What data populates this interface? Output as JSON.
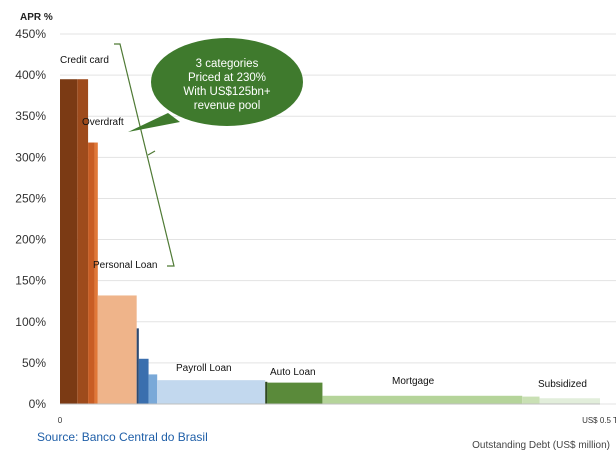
{
  "chart_data": {
    "type": "bar",
    "subtype": "variable-width bar (marimekko)",
    "ylabel": "APR %",
    "xlabel": "Outstanding Debt (US$ million)",
    "ylim": [
      0,
      450
    ],
    "xlim": [
      0,
      0.5
    ],
    "y_ticks": [
      "0%",
      "50%",
      "100%",
      "150%",
      "200%",
      "250%",
      "300%",
      "350%",
      "400%",
      "450%"
    ],
    "x_ticks": [
      "0",
      "US$ 0.5 T"
    ],
    "grid": true,
    "legend": "none",
    "segments": [
      {
        "label": "Credit card",
        "x_start": 0.0,
        "x_end": 0.016,
        "apr": 395,
        "color": "#7b3a14"
      },
      {
        "label": "",
        "x_start": 0.016,
        "x_end": 0.026,
        "apr": 395,
        "color": "#9e4b1c"
      },
      {
        "label": "Overdraft",
        "x_start": 0.026,
        "x_end": 0.032,
        "apr": 318,
        "color": "#c85d24"
      },
      {
        "label": "",
        "x_start": 0.032,
        "x_end": 0.035,
        "apr": 318,
        "color": "#e07838"
      },
      {
        "label": "Personal Loan",
        "x_start": 0.035,
        "x_end": 0.071,
        "apr": 132,
        "color": "#efb48a"
      },
      {
        "label": "",
        "x_start": 0.071,
        "x_end": 0.073,
        "apr": 92,
        "color": "#2c4a72"
      },
      {
        "label": "",
        "x_start": 0.073,
        "x_end": 0.082,
        "apr": 55,
        "color": "#3a6fae"
      },
      {
        "label": "",
        "x_start": 0.082,
        "x_end": 0.09,
        "apr": 36,
        "color": "#7aa9d8"
      },
      {
        "label": "Payroll Loan",
        "x_start": 0.09,
        "x_end": 0.19,
        "apr": 29,
        "color": "#c2d8ee"
      },
      {
        "label": "",
        "x_start": 0.19,
        "x_end": 0.192,
        "apr": 27,
        "color": "#2f4a22"
      },
      {
        "label": "Auto Loan",
        "x_start": 0.192,
        "x_end": 0.243,
        "apr": 26,
        "color": "#5a8a3a"
      },
      {
        "label": "Mortgage",
        "x_start": 0.243,
        "x_end": 0.428,
        "apr": 10,
        "color": "#b5d49a"
      },
      {
        "label": "",
        "x_start": 0.428,
        "x_end": 0.444,
        "apr": 9,
        "color": "#c9e0b4"
      },
      {
        "label": "Subsidized",
        "x_start": 0.444,
        "x_end": 0.5,
        "apr": 7,
        "color": "#e2eedb"
      }
    ],
    "annotations": [
      {
        "text": "3 categories\nPriced at 230%\nWith US$125bn+\nrevenue pool",
        "color": "#3f7a2d"
      }
    ]
  },
  "source_text": "Source: Banco Central do Brasil"
}
